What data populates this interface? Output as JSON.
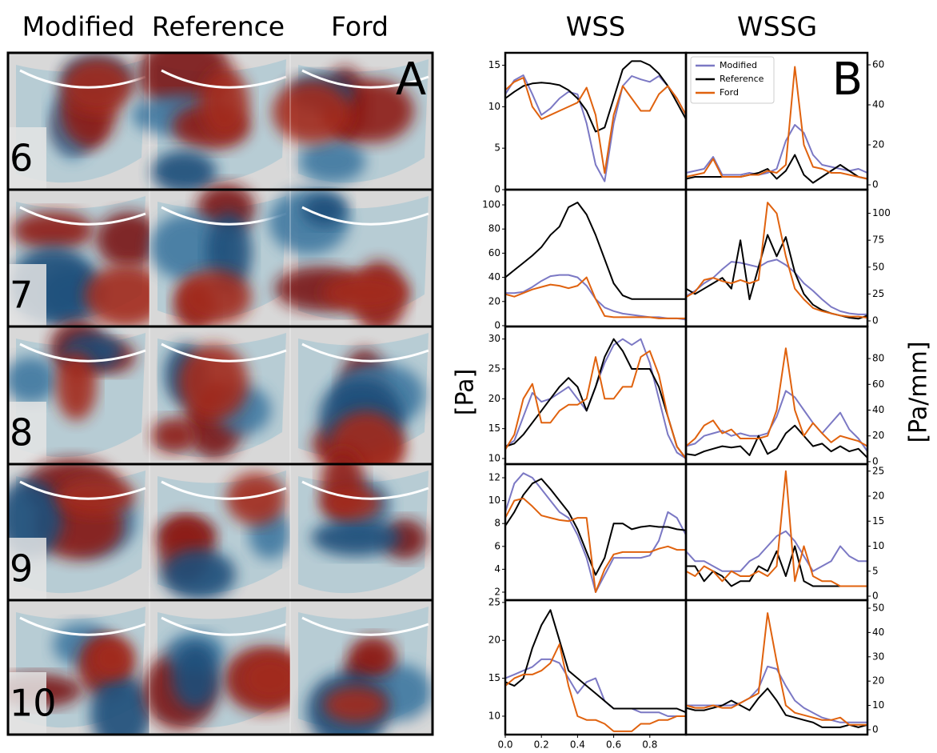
{
  "panel_a": {
    "letter": "A",
    "columns": [
      "Modified",
      "Reference",
      "Ford"
    ],
    "rows": [
      "6",
      "7",
      "8",
      "9",
      "10"
    ]
  },
  "panel_b": {
    "letter": "B",
    "columns": [
      "WSS",
      "WSSG"
    ],
    "y_labels": [
      "[Pa]",
      "[Pa/mm]"
    ]
  },
  "chart_data": [
    {
      "type": "line",
      "x": [
        0,
        0.05,
        0.1,
        0.15,
        0.2,
        0.25,
        0.3,
        0.35,
        0.4,
        0.45,
        0.5,
        0.55,
        0.6,
        0.65,
        0.7,
        0.75,
        0.8,
        0.85,
        0.9,
        0.95,
        1
      ],
      "xlim": [
        0,
        1
      ],
      "ylim": [
        0,
        16.5
      ],
      "yticks": [
        0,
        5,
        10,
        15
      ],
      "series": [
        {
          "color": "#7b78c4",
          "values": [
            11.5,
            13.2,
            13.8,
            11.5,
            9,
            9.8,
            11,
            11.8,
            11.5,
            8,
            3,
            1,
            8,
            12.5,
            13.7,
            13.3,
            13,
            13.7,
            12.5,
            11,
            9
          ]
        },
        {
          "color": "#000000",
          "values": [
            11,
            11.8,
            12.5,
            12.8,
            12.9,
            12.8,
            12.6,
            12,
            11,
            9.5,
            7,
            7.5,
            11,
            14.5,
            15.5,
            15.5,
            15,
            14,
            12.5,
            10.5,
            8.5
          ]
        },
        {
          "color": "#e0620e",
          "values": [
            12,
            13,
            13.5,
            10,
            8.5,
            9,
            9.5,
            10,
            10.5,
            12.3,
            9,
            2,
            9,
            12.5,
            11,
            9.5,
            9.5,
            11.5,
            12.5,
            11,
            9
          ]
        }
      ]
    },
    {
      "type": "line",
      "x": [
        0,
        0.05,
        0.1,
        0.15,
        0.2,
        0.25,
        0.3,
        0.35,
        0.4,
        0.45,
        0.5,
        0.55,
        0.6,
        0.65,
        0.7,
        0.75,
        0.8,
        0.85,
        0.9,
        0.95,
        1
      ],
      "xlim": [
        0,
        1
      ],
      "ylim": [
        -2.4,
        66
      ],
      "yticks": [
        0,
        20,
        40,
        60
      ],
      "legend": "upper left",
      "series": [
        {
          "name": "Modified",
          "color": "#7b78c4",
          "values": [
            6,
            7,
            8,
            14,
            5,
            5,
            5,
            6,
            5,
            6,
            8,
            22,
            30,
            26,
            15,
            10,
            9,
            8,
            7,
            8,
            6
          ]
        },
        {
          "name": "Reference",
          "color": "#000000",
          "values": [
            3,
            4,
            4,
            4,
            4,
            4,
            4,
            5,
            6,
            8,
            3,
            7,
            15,
            5,
            1,
            4,
            7,
            10,
            7,
            4,
            3
          ]
        },
        {
          "name": "Ford",
          "color": "#e0620e",
          "values": [
            4,
            5,
            6,
            13,
            4,
            4,
            4,
            5,
            5,
            7,
            6,
            10,
            59,
            20,
            9,
            8,
            6,
            6,
            5,
            4,
            3
          ]
        }
      ]
    },
    {
      "type": "line",
      "x": [
        0,
        0.05,
        0.1,
        0.15,
        0.2,
        0.25,
        0.3,
        0.35,
        0.4,
        0.45,
        0.5,
        0.55,
        0.6,
        0.65,
        0.7,
        0.75,
        0.8,
        0.85,
        0.9,
        0.95,
        1
      ],
      "xlim": [
        0,
        1
      ],
      "ylim": [
        -0.7,
        112.6
      ],
      "yticks": [
        0,
        20,
        40,
        60,
        80,
        100
      ],
      "series": [
        {
          "color": "#7b78c4",
          "values": [
            27,
            27,
            28,
            32,
            37,
            41,
            42,
            42,
            40,
            33,
            22,
            15,
            12,
            10,
            9,
            8,
            7,
            7,
            6,
            6,
            5
          ]
        },
        {
          "color": "#000000",
          "values": [
            40,
            46,
            52,
            58,
            65,
            75,
            82,
            98,
            102,
            92,
            75,
            55,
            35,
            25,
            22,
            22,
            22,
            22,
            22,
            22,
            22
          ]
        },
        {
          "color": "#e0620e",
          "values": [
            26,
            24,
            27,
            30,
            32,
            34,
            33,
            31,
            33,
            40,
            22,
            8,
            7,
            7,
            7,
            7,
            7,
            6,
            6,
            6,
            6
          ]
        }
      ]
    },
    {
      "type": "line",
      "x": [
        0,
        0.05,
        0.1,
        0.15,
        0.2,
        0.25,
        0.3,
        0.35,
        0.4,
        0.45,
        0.5,
        0.55,
        0.6,
        0.65,
        0.7,
        0.75,
        0.8,
        0.85,
        0.9,
        0.95,
        1
      ],
      "xlim": [
        0,
        1
      ],
      "ylim": [
        -5.2,
        122
      ],
      "yticks": [
        0,
        25,
        50,
        75,
        100
      ],
      "series": [
        {
          "color": "#7b78c4",
          "values": [
            23,
            28,
            35,
            40,
            48,
            55,
            54,
            52,
            50,
            55,
            57,
            52,
            45,
            35,
            28,
            20,
            13,
            9,
            7,
            6,
            6
          ]
        },
        {
          "color": "#000000",
          "values": [
            30,
            25,
            30,
            35,
            40,
            30,
            75,
            20,
            50,
            80,
            60,
            78,
            45,
            25,
            15,
            10,
            7,
            5,
            3,
            2,
            5
          ]
        },
        {
          "color": "#e0620e",
          "values": [
            22,
            27,
            38,
            40,
            37,
            35,
            38,
            35,
            38,
            110,
            100,
            60,
            30,
            20,
            12,
            9,
            7,
            5,
            4,
            4,
            3
          ]
        }
      ]
    },
    {
      "type": "line",
      "x": [
        0,
        0.05,
        0.1,
        0.15,
        0.2,
        0.25,
        0.3,
        0.35,
        0.4,
        0.45,
        0.5,
        0.55,
        0.6,
        0.65,
        0.7,
        0.75,
        0.8,
        0.85,
        0.9,
        0.95,
        1
      ],
      "xlim": [
        0,
        1
      ],
      "ylim": [
        9.06,
        32.1
      ],
      "yticks": [
        10,
        15,
        20,
        25,
        30
      ],
      "series": [
        {
          "color": "#7b78c4",
          "values": [
            12,
            13,
            17,
            21,
            19.5,
            20,
            21,
            22,
            20,
            18,
            22,
            26,
            29,
            30,
            29,
            30,
            26,
            20,
            14,
            11,
            10
          ]
        },
        {
          "color": "#000000",
          "values": [
            12,
            12.5,
            14,
            16,
            18,
            20,
            22,
            23.5,
            22,
            18,
            22,
            27,
            30,
            28,
            25,
            25,
            25,
            22,
            17,
            12,
            10
          ]
        },
        {
          "color": "#e0620e",
          "values": [
            11.5,
            14,
            20,
            22.5,
            16,
            16,
            18,
            19,
            19,
            20,
            27,
            20,
            20,
            22,
            22,
            27,
            28,
            24,
            17,
            12,
            10
          ]
        }
      ]
    },
    {
      "type": "line",
      "x": [
        0,
        0.05,
        0.1,
        0.15,
        0.2,
        0.25,
        0.3,
        0.35,
        0.4,
        0.45,
        0.5,
        0.55,
        0.6,
        0.65,
        0.7,
        0.75,
        0.8,
        0.85,
        0.9,
        0.95,
        1
      ],
      "xlim": [
        0,
        1
      ],
      "ylim": [
        -1.9,
        104.9
      ],
      "yticks": [
        0,
        20,
        40,
        60,
        80
      ],
      "series": [
        {
          "color": "#7b78c4",
          "values": [
            12,
            14,
            20,
            22,
            24,
            20,
            22,
            20,
            20,
            22,
            35,
            55,
            50,
            40,
            30,
            22,
            30,
            38,
            25,
            18,
            8
          ]
        },
        {
          "color": "#000000",
          "values": [
            6,
            5,
            8,
            10,
            12,
            11,
            12,
            5,
            20,
            6,
            10,
            22,
            28,
            20,
            12,
            14,
            8,
            12,
            8,
            10,
            3
          ]
        },
        {
          "color": "#e0620e",
          "values": [
            12,
            18,
            28,
            32,
            22,
            25,
            18,
            18,
            18,
            20,
            40,
            88,
            40,
            20,
            30,
            22,
            15,
            20,
            18,
            16,
            12
          ]
        }
      ]
    },
    {
      "type": "line",
      "x": [
        0,
        0.05,
        0.1,
        0.15,
        0.2,
        0.25,
        0.3,
        0.35,
        0.4,
        0.45,
        0.5,
        0.55,
        0.6,
        0.65,
        0.7,
        0.75,
        0.8,
        0.85,
        0.9,
        0.95,
        1
      ],
      "xlim": [
        0,
        1
      ],
      "ylim": [
        1.3,
        13.19
      ],
      "yticks": [
        2,
        4,
        6,
        8,
        10,
        12
      ],
      "series": [
        {
          "color": "#7b78c4",
          "values": [
            9,
            11.5,
            12.4,
            12,
            11,
            10,
            9,
            8.5,
            7,
            5,
            2,
            3.5,
            5,
            5,
            5,
            5,
            5.2,
            6.5,
            9,
            8.5,
            7
          ]
        },
        {
          "color": "#000000",
          "values": [
            7.8,
            9,
            10.5,
            11.5,
            11.9,
            11,
            10,
            9,
            7.5,
            5.5,
            3.5,
            5,
            8,
            8,
            7.5,
            7.7,
            7.8,
            7.7,
            7.7,
            7.5,
            7.4
          ]
        },
        {
          "color": "#e0620e",
          "values": [
            8.5,
            10,
            10.2,
            9.5,
            8.7,
            8.5,
            8.3,
            8.2,
            8.5,
            8.5,
            2,
            4,
            5.3,
            5.5,
            5.5,
            5.5,
            5.5,
            5.8,
            6,
            5.7,
            5.7
          ]
        }
      ]
    },
    {
      "type": "line",
      "x": [
        0,
        0.05,
        0.1,
        0.15,
        0.2,
        0.25,
        0.3,
        0.35,
        0.4,
        0.45,
        0.5,
        0.55,
        0.6,
        0.65,
        0.7,
        0.75,
        0.8,
        0.85,
        0.9,
        0.95,
        1
      ],
      "xlim": [
        0,
        1
      ],
      "ylim": [
        -0.8,
        26.4
      ],
      "yticks": [
        0,
        5,
        10,
        15,
        20,
        25
      ],
      "series": [
        {
          "color": "#7b78c4",
          "values": [
            9,
            7,
            7,
            6,
            5,
            5,
            5,
            7,
            8,
            10,
            12,
            13,
            11,
            8,
            5,
            6,
            7,
            10,
            8,
            7,
            7
          ]
        },
        {
          "color": "#000000",
          "values": [
            6,
            6,
            3,
            5,
            4,
            2,
            3,
            3,
            6,
            5,
            9,
            4,
            10,
            3,
            2,
            2,
            2,
            2,
            2,
            2,
            2
          ]
        },
        {
          "color": "#e0620e",
          "values": [
            5,
            4,
            6,
            5,
            3,
            5,
            4,
            4,
            5,
            4,
            6,
            25,
            3,
            10,
            4,
            3,
            3,
            2,
            2,
            2,
            2
          ]
        }
      ]
    },
    {
      "type": "line",
      "x": [
        0,
        0.05,
        0.1,
        0.15,
        0.2,
        0.25,
        0.3,
        0.35,
        0.4,
        0.45,
        0.5,
        0.55,
        0.6,
        0.65,
        0.7,
        0.75,
        0.8,
        0.85,
        0.9,
        0.95,
        1
      ],
      "xlim": [
        0,
        1
      ],
      "ylim": [
        7.57,
        25.3
      ],
      "yticks": [
        10,
        15,
        20,
        25
      ],
      "xticks": [
        {
          "value": 0,
          "label": "0.0"
        },
        0.2,
        0.4,
        0.6,
        0.8
      ],
      "series": [
        {
          "color": "#7b78c4",
          "values": [
            15,
            15.5,
            16,
            16.5,
            17.5,
            17.5,
            17,
            15,
            13,
            14.5,
            15,
            12,
            11,
            11,
            11,
            10.5,
            10.5,
            10.5,
            10,
            10,
            10
          ]
        },
        {
          "color": "#000000",
          "values": [
            14.5,
            14,
            15,
            19,
            22,
            24,
            20,
            16,
            15,
            14,
            13,
            12,
            11,
            11,
            11,
            11,
            11,
            11,
            11,
            11,
            10.5
          ]
        },
        {
          "color": "#e0620e",
          "values": [
            14,
            15,
            15.5,
            15.5,
            16,
            17,
            19.5,
            14,
            10,
            9.5,
            9.5,
            9,
            8,
            8,
            8,
            9,
            9,
            9.5,
            9.5,
            10,
            10
          ]
        }
      ]
    },
    {
      "type": "line",
      "x": [
        0,
        0.05,
        0.1,
        0.15,
        0.2,
        0.25,
        0.3,
        0.35,
        0.4,
        0.45,
        0.5,
        0.55,
        0.6,
        0.65,
        0.7,
        0.75,
        0.8,
        0.85,
        0.9,
        0.95,
        1
      ],
      "xlim": [
        0,
        1
      ],
      "ylim": [
        -2,
        53.3
      ],
      "yticks": [
        0,
        10,
        20,
        30,
        40,
        50
      ],
      "series": [
        {
          "color": "#7b78c4",
          "values": [
            10,
            10,
            10,
            10,
            10,
            10,
            11,
            13,
            17,
            26,
            25,
            18,
            12,
            9,
            7,
            5,
            4,
            3,
            3,
            3,
            3
          ]
        },
        {
          "color": "#000000",
          "values": [
            9,
            8,
            8,
            9,
            10,
            12,
            10,
            8,
            13,
            17,
            12,
            6,
            5,
            4,
            3,
            1,
            1,
            1,
            2,
            1,
            2
          ]
        },
        {
          "color": "#e0620e",
          "values": [
            10,
            9,
            9,
            10,
            9,
            9,
            11,
            13,
            15,
            48,
            28,
            10,
            7,
            6,
            5,
            4,
            4,
            5,
            2,
            2,
            2
          ]
        }
      ]
    }
  ]
}
